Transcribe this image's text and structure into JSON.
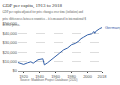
{
  "chart_data": {
    "type": "line",
    "title": "GDP per capita, 1913 to 2018",
    "subtitle": "GDP per capita adjusted for price changes over time (inflation) and price differences between countries – it is measured in international-$ in 2011 prices.",
    "source": "Source: Maddison Project Database (2020)",
    "x": [
      1913,
      1918,
      1920,
      1925,
      1929,
      1932,
      1938,
      1944,
      1946,
      1950,
      1955,
      1960,
      1965,
      1970,
      1975,
      1980,
      1985,
      1990,
      1991,
      1995,
      2000,
      2005,
      2008,
      2009,
      2010,
      2015,
      2018
    ],
    "series": [
      {
        "name": "Germany",
        "color": "#3360a9",
        "values": [
          9000,
          7500,
          7000,
          8700,
          9800,
          8300,
          12000,
          13000,
          6500,
          8800,
          12500,
          16000,
          19000,
          22500,
          24500,
          28000,
          29500,
          32500,
          34000,
          36000,
          38500,
          39500,
          42000,
          40000,
          42000,
          45000,
          46178
        ]
      }
    ],
    "xlim": [
      1913,
      2018
    ],
    "xticks": [
      1920,
      1940,
      1960,
      1980,
      2000,
      2018
    ],
    "ylim": [
      0,
      50000
    ],
    "yticks": [
      {
        "value": 0,
        "label": "$0"
      },
      {
        "value": 10000,
        "label": "$10,000"
      },
      {
        "value": 20000,
        "label": "$20,000"
      },
      {
        "value": 30000,
        "label": "$30,000"
      },
      {
        "value": 40000,
        "label": "$40,000"
      },
      {
        "value": 50000,
        "label": "$50,000"
      }
    ],
    "grid": true
  }
}
